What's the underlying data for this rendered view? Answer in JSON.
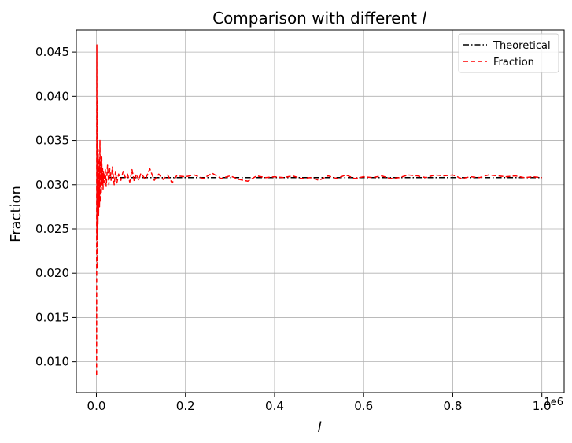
{
  "chart_data": {
    "type": "line",
    "title": "Comparison with different l",
    "title_prefix": "Comparison with different ",
    "title_var": "l",
    "xlabel": "l",
    "ylabel": "Fraction",
    "x_offset_label": "1e6",
    "xlim": [
      -45000,
      1050000
    ],
    "ylim": [
      0.0065,
      0.0475
    ],
    "x_ticks": [
      0,
      200000,
      400000,
      600000,
      800000,
      1000000
    ],
    "x_tick_labels": [
      "0.0",
      "0.2",
      "0.4",
      "0.6",
      "0.8",
      "1.0"
    ],
    "y_ticks": [
      0.01,
      0.015,
      0.02,
      0.025,
      0.03,
      0.035,
      0.04,
      0.045
    ],
    "y_tick_labels": [
      "0.010",
      "0.015",
      "0.020",
      "0.025",
      "0.030",
      "0.035",
      "0.040",
      "0.045"
    ],
    "grid": true,
    "legend_position": "top-right",
    "series": [
      {
        "name": "Theoretical",
        "color": "#000000",
        "style": "dashdot",
        "x": [
          1000,
          1000000
        ],
        "y": [
          0.0308,
          0.0308
        ]
      },
      {
        "name": "Fraction",
        "color": "#ff0000",
        "style": "dashed",
        "x": [
          500,
          1000,
          1500,
          2000,
          2500,
          3000,
          3500,
          4000,
          5000,
          6000,
          7000,
          8000,
          9000,
          10000,
          11000,
          12000,
          13000,
          14000,
          15000,
          16000,
          18000,
          20000,
          22000,
          25000,
          28000,
          30000,
          33000,
          36000,
          40000,
          43000,
          46000,
          50000,
          55000,
          60000,
          65000,
          70000,
          75000,
          80000,
          85000,
          90000,
          95000,
          100000,
          110000,
          120000,
          130000,
          140000,
          150000,
          160000,
          170000,
          180000,
          200000,
          220000,
          240000,
          260000,
          280000,
          300000,
          320000,
          340000,
          360000,
          380000,
          400000,
          420000,
          440000,
          460000,
          480000,
          500000,
          520000,
          540000,
          560000,
          580000,
          600000,
          620000,
          640000,
          660000,
          680000,
          700000,
          720000,
          740000,
          760000,
          780000,
          800000,
          820000,
          840000,
          860000,
          880000,
          900000,
          920000,
          940000,
          960000,
          980000,
          1000000
        ],
        "y": [
          0.0085,
          0.0458,
          0.024,
          0.0395,
          0.0205,
          0.0345,
          0.0255,
          0.034,
          0.0265,
          0.033,
          0.0275,
          0.035,
          0.028,
          0.0325,
          0.029,
          0.0332,
          0.03,
          0.0318,
          0.0295,
          0.0315,
          0.0302,
          0.0317,
          0.0298,
          0.0322,
          0.03,
          0.0318,
          0.0305,
          0.032,
          0.03,
          0.0315,
          0.0302,
          0.0312,
          0.0305,
          0.0315,
          0.0308,
          0.0312,
          0.0303,
          0.0317,
          0.0304,
          0.0312,
          0.0305,
          0.0313,
          0.0306,
          0.0318,
          0.0305,
          0.0312,
          0.0306,
          0.0311,
          0.0302,
          0.031,
          0.0309,
          0.0311,
          0.0307,
          0.0313,
          0.0307,
          0.031,
          0.0306,
          0.0304,
          0.031,
          0.0308,
          0.0309,
          0.0308,
          0.031,
          0.0307,
          0.0308,
          0.0305,
          0.031,
          0.0307,
          0.0311,
          0.0307,
          0.0309,
          0.0308,
          0.031,
          0.0307,
          0.0308,
          0.0311,
          0.031,
          0.0308,
          0.0311,
          0.031,
          0.0311,
          0.0307,
          0.0309,
          0.0308,
          0.0311,
          0.031,
          0.0309,
          0.031,
          0.0308,
          0.0309,
          0.0308
        ]
      }
    ]
  }
}
